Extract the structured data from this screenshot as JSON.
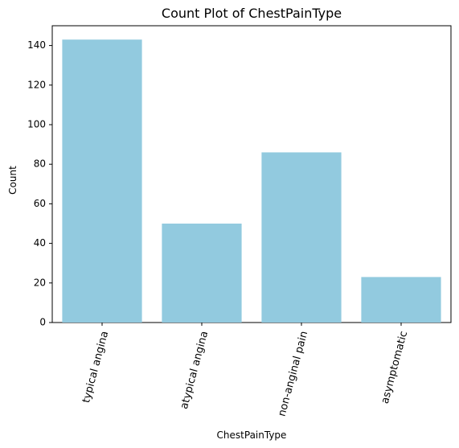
{
  "chart_data": {
    "type": "bar",
    "title": "Count Plot of ChestPainType",
    "xlabel": "ChestPainType",
    "ylabel": "Count",
    "categories": [
      "typical angina",
      "atypical angina",
      "non-anginal pain",
      "asymptomatic"
    ],
    "values": [
      143,
      50,
      86,
      23
    ],
    "ylim": [
      0,
      150
    ],
    "yticks": [
      0,
      20,
      40,
      60,
      80,
      100,
      120,
      140
    ],
    "bar_color": "#92cadf",
    "grid": false,
    "x_tick_rotation": "75 degrees"
  }
}
